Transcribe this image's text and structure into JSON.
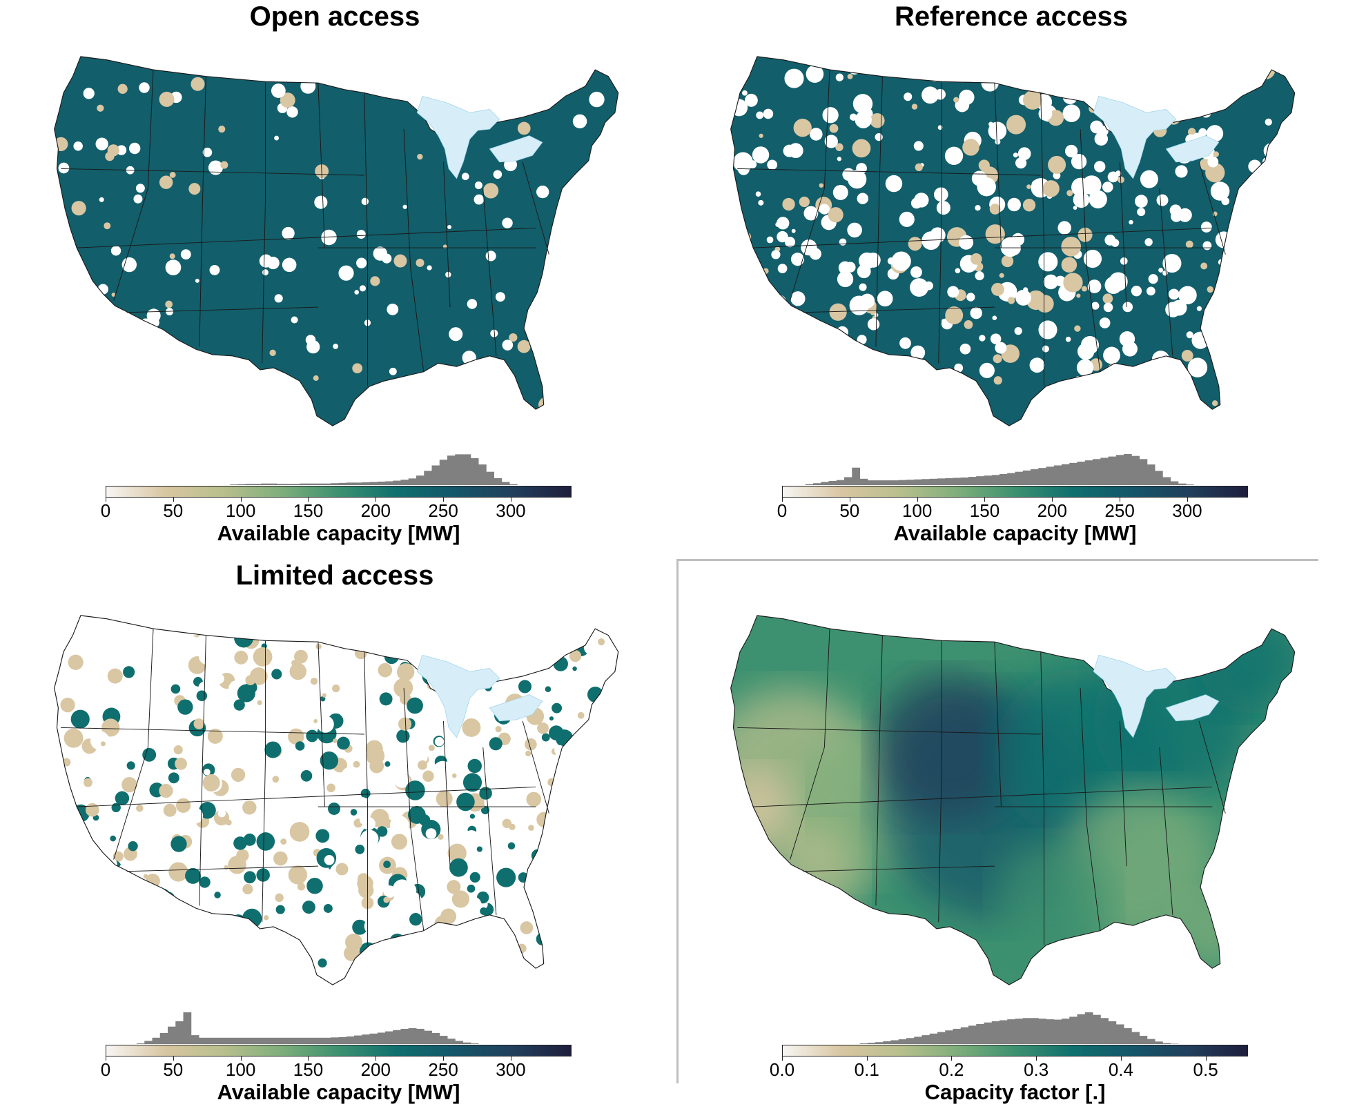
{
  "panels": [
    {
      "id": "open",
      "title": "Open access",
      "cbar_ticks": [
        "0",
        "50",
        "100",
        "150",
        "200",
        "250",
        "300"
      ],
      "cbar_label": "Available capacity [MW]",
      "hist": [
        0,
        0,
        0,
        0,
        0,
        0,
        0,
        0,
        0,
        0,
        0,
        0,
        0,
        0,
        0,
        0,
        0.02,
        0.03,
        0.04,
        0.04,
        0.05,
        0.05,
        0.04,
        0.04,
        0.04,
        0.05,
        0.05,
        0.05,
        0.05,
        0.06,
        0.07,
        0.08,
        0.08,
        0.09,
        0.1,
        0.11,
        0.12,
        0.14,
        0.17,
        0.21,
        0.3,
        0.45,
        0.62,
        0.8,
        0.93,
        0.97,
        0.97,
        0.85,
        0.65,
        0.42,
        0.22,
        0.1,
        0.03,
        0,
        0,
        0,
        0,
        0,
        0,
        0
      ],
      "fill": "open"
    },
    {
      "id": "reference",
      "title": "Reference access",
      "cbar_ticks": [
        "0",
        "50",
        "100",
        "150",
        "200",
        "250",
        "300"
      ],
      "cbar_label": "Available capacity [MW]",
      "hist": [
        0,
        0,
        0,
        0.03,
        0.06,
        0.1,
        0.13,
        0.16,
        0.25,
        0.55,
        0.2,
        0.15,
        0.15,
        0.15,
        0.15,
        0.16,
        0.17,
        0.18,
        0.19,
        0.2,
        0.21,
        0.22,
        0.23,
        0.24,
        0.26,
        0.28,
        0.3,
        0.32,
        0.35,
        0.38,
        0.42,
        0.46,
        0.5,
        0.54,
        0.58,
        0.62,
        0.66,
        0.7,
        0.74,
        0.78,
        0.82,
        0.86,
        0.9,
        0.95,
        0.98,
        0.92,
        0.82,
        0.65,
        0.45,
        0.25,
        0.12,
        0.05,
        0.02,
        0,
        0,
        0,
        0,
        0,
        0,
        0
      ],
      "fill": "reference"
    },
    {
      "id": "limited",
      "title": "Limited access",
      "cbar_ticks": [
        "0",
        "50",
        "100",
        "150",
        "200",
        "250",
        "300"
      ],
      "cbar_label": "Available capacity [MW]",
      "hist": [
        0,
        0,
        0,
        0,
        0.02,
        0.1,
        0.2,
        0.35,
        0.55,
        0.72,
        1.0,
        0.28,
        0.2,
        0.2,
        0.2,
        0.2,
        0.2,
        0.2,
        0.2,
        0.2,
        0.2,
        0.2,
        0.2,
        0.2,
        0.2,
        0.2,
        0.2,
        0.2,
        0.2,
        0.21,
        0.22,
        0.24,
        0.27,
        0.3,
        0.33,
        0.36,
        0.4,
        0.44,
        0.48,
        0.5,
        0.48,
        0.42,
        0.35,
        0.26,
        0.17,
        0.1,
        0.05,
        0.02,
        0,
        0,
        0,
        0,
        0,
        0,
        0,
        0,
        0,
        0,
        0,
        0
      ],
      "fill": "limited"
    },
    {
      "id": "cf",
      "title": "",
      "cbar_ticks": [
        "0.0",
        "0.1",
        "0.2",
        "0.3",
        "0.4",
        "0.5"
      ],
      "cbar_label": "Capacity factor [.]",
      "hist": [
        0,
        0,
        0,
        0,
        0,
        0,
        0,
        0,
        0,
        0,
        0.02,
        0.04,
        0.06,
        0.09,
        0.12,
        0.15,
        0.19,
        0.23,
        0.28,
        0.33,
        0.38,
        0.43,
        0.48,
        0.53,
        0.58,
        0.63,
        0.68,
        0.72,
        0.75,
        0.78,
        0.8,
        0.82,
        0.82,
        0.8,
        0.78,
        0.77,
        0.8,
        0.86,
        0.94,
        1.0,
        0.92,
        0.82,
        0.72,
        0.62,
        0.5,
        0.38,
        0.26,
        0.16,
        0.08,
        0.03,
        0.01,
        0,
        0,
        0,
        0,
        0,
        0,
        0,
        0,
        0
      ],
      "fill": "cf"
    }
  ],
  "colors": {
    "cmap": [
      "#f7f6f4",
      "#d9c6a2",
      "#b9bf8d",
      "#7fae7b",
      "#3d9170",
      "#0f6f6e",
      "#14566a",
      "#213f5c",
      "#1e1e3c"
    ],
    "hist_fill": "#808080",
    "lake": "#d7eef8",
    "border": "#1a1a1a"
  }
}
